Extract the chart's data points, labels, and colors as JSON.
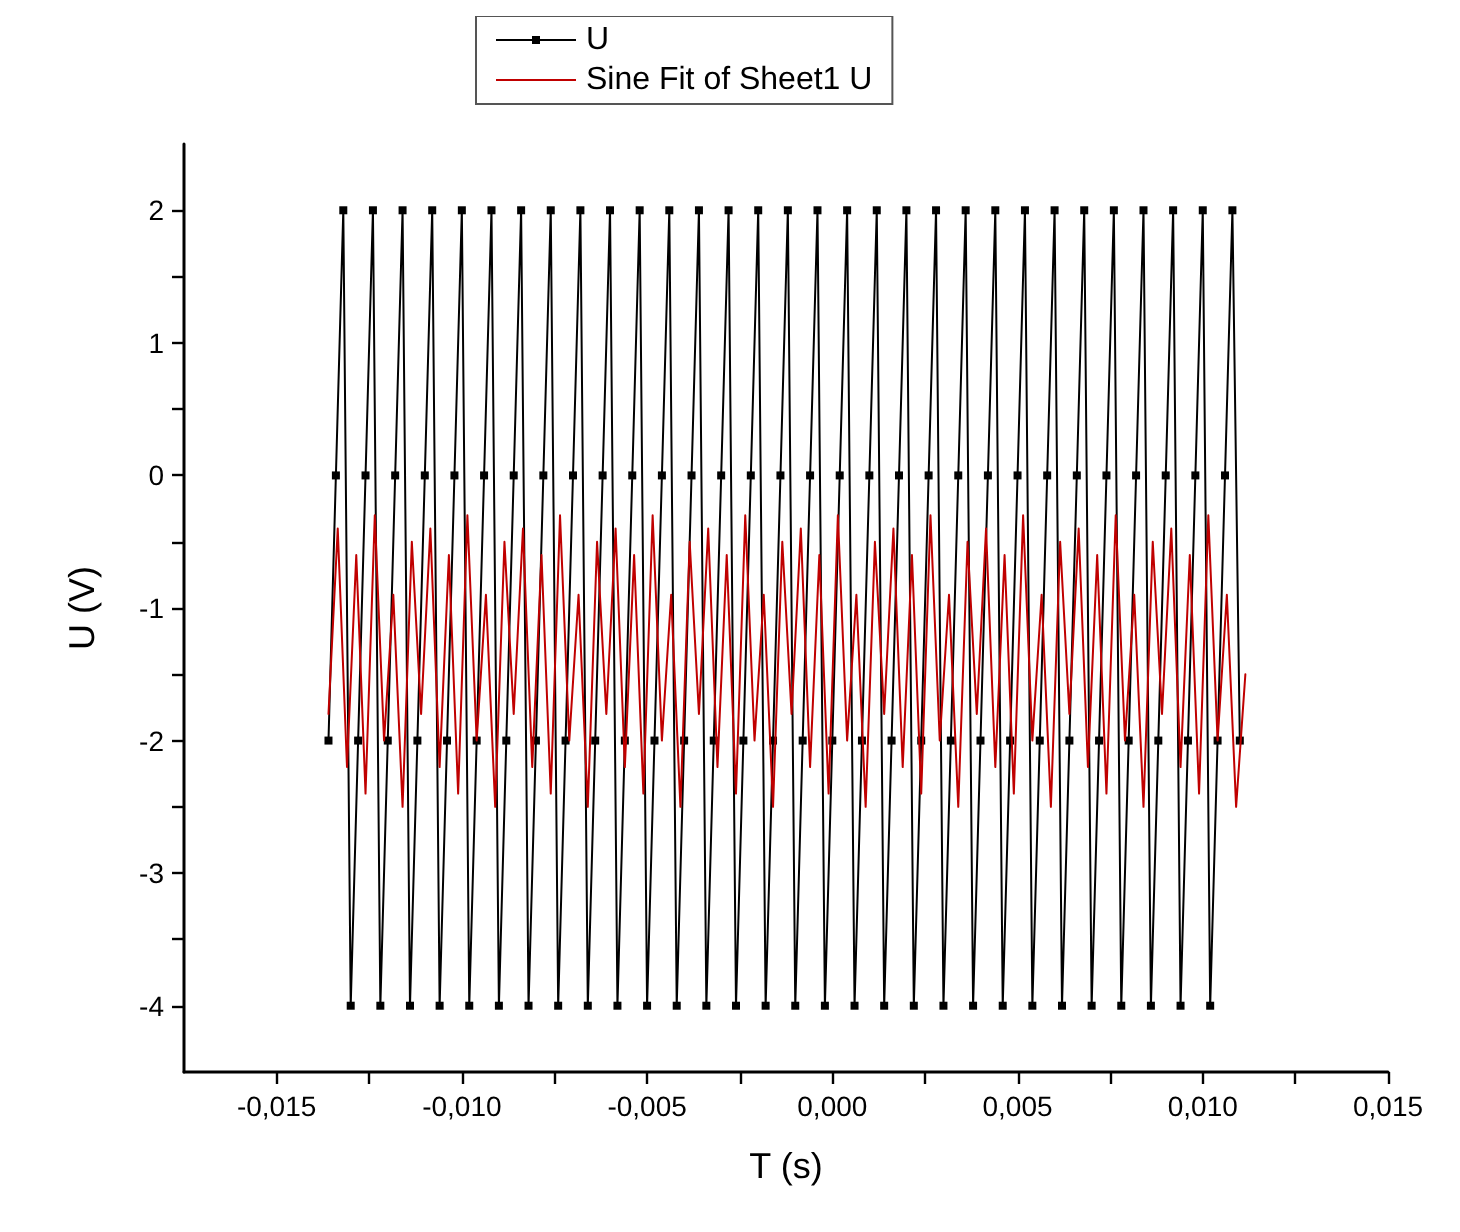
{
  "chart_data": {
    "type": "line",
    "xlabel": "T (s)",
    "ylabel": "U (V)",
    "xlim": [
      -0.0175,
      0.015
    ],
    "ylim": [
      -4.5,
      2.5
    ],
    "xticks": [
      {
        "value": -0.015,
        "label": "-0,015"
      },
      {
        "value": -0.0125,
        "label": null
      },
      {
        "value": -0.01,
        "label": "-0,010"
      },
      {
        "value": -0.0075,
        "label": null
      },
      {
        "value": -0.005,
        "label": "-0,005"
      },
      {
        "value": -0.0025,
        "label": null
      },
      {
        "value": 0,
        "label": "0,000"
      },
      {
        "value": 0.0025,
        "label": null
      },
      {
        "value": 0.005,
        "label": "0,005"
      },
      {
        "value": 0.0075,
        "label": null
      },
      {
        "value": 0.01,
        "label": "0,010"
      },
      {
        "value": 0.0125,
        "label": null
      },
      {
        "value": 0.015,
        "label": "0,015"
      }
    ],
    "yticks": [
      -4,
      {
        "value": -3.5,
        "label": null
      },
      -3,
      {
        "value": -2.5,
        "label": null
      },
      -2,
      {
        "value": -1.5,
        "label": null
      },
      -1,
      {
        "value": -0.5,
        "label": null
      },
      0,
      {
        "value": 0.5,
        "label": null
      },
      1,
      {
        "value": 1.5,
        "label": null
      },
      2
    ],
    "grid": false,
    "legend": "top",
    "line_style": "solid",
    "series": [
      {
        "name": "U",
        "color": "#000000",
        "marker": "square",
        "x": [
          -0.0136,
          -0.0134,
          -0.0132,
          -0.013,
          -0.0128,
          -0.0126,
          -0.0124,
          -0.0122,
          -0.012,
          -0.0118,
          -0.0116,
          -0.0114,
          -0.0112,
          -0.011,
          -0.0108,
          -0.0106,
          -0.0104,
          -0.0102,
          -0.01,
          -0.0098,
          -0.0096,
          -0.0094,
          -0.0092,
          -0.009,
          -0.0088,
          -0.0086,
          -0.0084,
          -0.0082,
          -0.008,
          -0.0078,
          -0.0076,
          -0.0074,
          -0.0072,
          -0.007,
          -0.0068,
          -0.0066,
          -0.0064,
          -0.0062,
          -0.006,
          -0.0058,
          -0.0056,
          -0.0054,
          -0.0052,
          -0.005,
          -0.0048,
          -0.0046,
          -0.0044,
          -0.0042,
          -0.004,
          -0.0038,
          -0.0036,
          -0.0034,
          -0.0032,
          -0.003,
          -0.0028,
          -0.0026,
          -0.0024,
          -0.0022,
          -0.002,
          -0.0018,
          -0.0016,
          -0.0014,
          -0.0012,
          -0.001,
          -0.0008,
          -0.0006,
          -0.0004,
          -0.0002,
          0,
          0.0002,
          0.0004,
          0.0006,
          0.0008,
          0.001,
          0.0012,
          0.0014,
          0.0016,
          0.0018,
          0.002,
          0.0022,
          0.0024,
          0.0026,
          0.0028,
          0.003,
          0.0032,
          0.0034,
          0.0036,
          0.0038,
          0.004,
          0.0042,
          0.0044,
          0.0046,
          0.0048,
          0.005,
          0.0052,
          0.0054,
          0.0056,
          0.0058,
          0.006,
          0.0062,
          0.0064,
          0.0066,
          0.0068,
          0.007,
          0.0072,
          0.0074,
          0.0076,
          0.0078,
          0.008,
          0.0082,
          0.0084,
          0.0086,
          0.0088,
          0.009,
          0.0092,
          0.0094,
          0.0096,
          0.0098,
          0.01,
          0.0102,
          0.0104,
          0.0106,
          0.0108,
          0.011
        ],
        "values": [
          -2,
          0,
          2,
          -4,
          -2,
          0,
          2,
          -4,
          -2,
          0,
          2,
          -4,
          -2,
          0,
          2,
          -4,
          -2,
          0,
          2,
          -4,
          -2,
          0,
          2,
          -4,
          -2,
          0,
          2,
          -4,
          -2,
          0,
          2,
          -4,
          -2,
          0,
          2,
          -4,
          -2,
          0,
          2,
          -4,
          -2,
          0,
          2,
          -4,
          -2,
          0,
          2,
          -4,
          -2,
          0,
          2,
          -4,
          -2,
          0,
          2,
          -4,
          -2,
          0,
          2,
          -4,
          -2,
          0,
          2,
          -4,
          -2,
          0,
          2,
          -4,
          -2,
          0,
          2,
          -4,
          -2,
          0,
          2,
          -4,
          -2,
          0,
          2,
          -4,
          -2,
          0,
          2,
          -4,
          -2,
          0,
          2,
          -4,
          -2,
          0,
          2,
          -4,
          -2,
          0,
          2,
          -4,
          -2,
          0,
          2,
          -4,
          -2,
          0,
          2,
          -4,
          -2,
          0,
          2,
          -4,
          -2,
          0,
          2,
          -4,
          -2,
          0,
          2,
          -4,
          -2,
          0,
          2,
          -4,
          -2,
          0,
          2,
          -2
        ]
      },
      {
        "name": "Sine Fit of Sheet1 U",
        "color": "#c00000",
        "marker": "none",
        "x": [
          -0.0136,
          -0.01335,
          -0.0131,
          -0.01285,
          -0.0126,
          -0.01235,
          -0.0121,
          -0.01185,
          -0.0116,
          -0.01135,
          -0.0111,
          -0.01085,
          -0.0106,
          -0.01035,
          -0.0101,
          -0.00985,
          -0.0096,
          -0.00935,
          -0.0091,
          -0.00885,
          -0.0086,
          -0.00835,
          -0.0081,
          -0.00785,
          -0.0076,
          -0.00735,
          -0.0071,
          -0.00685,
          -0.0066,
          -0.00635,
          -0.0061,
          -0.00585,
          -0.0056,
          -0.00535,
          -0.0051,
          -0.00485,
          -0.0046,
          -0.00435,
          -0.0041,
          -0.00385,
          -0.0036,
          -0.00335,
          -0.0031,
          -0.00285,
          -0.0026,
          -0.00235,
          -0.0021,
          -0.00185,
          -0.0016,
          -0.00135,
          -0.0011,
          -0.00085,
          -0.0006,
          -0.00035,
          -0.0001,
          0.00015,
          0.0004,
          0.00065,
          0.0009,
          0.00115,
          0.0014,
          0.00165,
          0.0019,
          0.00215,
          0.0024,
          0.00265,
          0.0029,
          0.00315,
          0.0034,
          0.00365,
          0.0039,
          0.00415,
          0.0044,
          0.00465,
          0.0049,
          0.00515,
          0.0054,
          0.00565,
          0.0059,
          0.00615,
          0.0064,
          0.00665,
          0.0069,
          0.00715,
          0.0074,
          0.00765,
          0.0079,
          0.00815,
          0.0084,
          0.00865,
          0.0089,
          0.00915,
          0.0094,
          0.00965,
          0.0099,
          0.01015,
          0.0104,
          0.01065,
          0.0109,
          0.01115
        ],
        "values": [
          -1.8,
          -0.4,
          -2.2,
          -0.6,
          -2.4,
          -0.3,
          -2.0,
          -0.9,
          -2.5,
          -0.5,
          -1.8,
          -0.4,
          -2.2,
          -0.6,
          -2.4,
          -0.3,
          -2.0,
          -0.9,
          -2.5,
          -0.5,
          -1.8,
          -0.4,
          -2.2,
          -0.6,
          -2.4,
          -0.3,
          -2.0,
          -0.9,
          -2.5,
          -0.5,
          -1.8,
          -0.4,
          -2.2,
          -0.6,
          -2.4,
          -0.3,
          -2.0,
          -0.9,
          -2.5,
          -0.5,
          -1.8,
          -0.4,
          -2.2,
          -0.6,
          -2.4,
          -0.3,
          -2.0,
          -0.9,
          -2.5,
          -0.5,
          -1.8,
          -0.4,
          -2.2,
          -0.6,
          -2.4,
          -0.3,
          -2.0,
          -0.9,
          -2.5,
          -0.5,
          -1.8,
          -0.4,
          -2.2,
          -0.6,
          -2.4,
          -0.3,
          -2.0,
          -0.9,
          -2.5,
          -0.5,
          -1.8,
          -0.4,
          -2.2,
          -0.6,
          -2.4,
          -0.3,
          -2.0,
          -0.9,
          -2.5,
          -0.5,
          -1.8,
          -0.4,
          -2.2,
          -0.6,
          -2.4,
          -0.3,
          -2.0,
          -0.9,
          -2.5,
          -0.5,
          -1.8,
          -0.4,
          -2.2,
          -0.6,
          -2.4,
          -0.3,
          -2.0,
          -0.9,
          -2.5,
          -1.5
        ]
      }
    ]
  }
}
